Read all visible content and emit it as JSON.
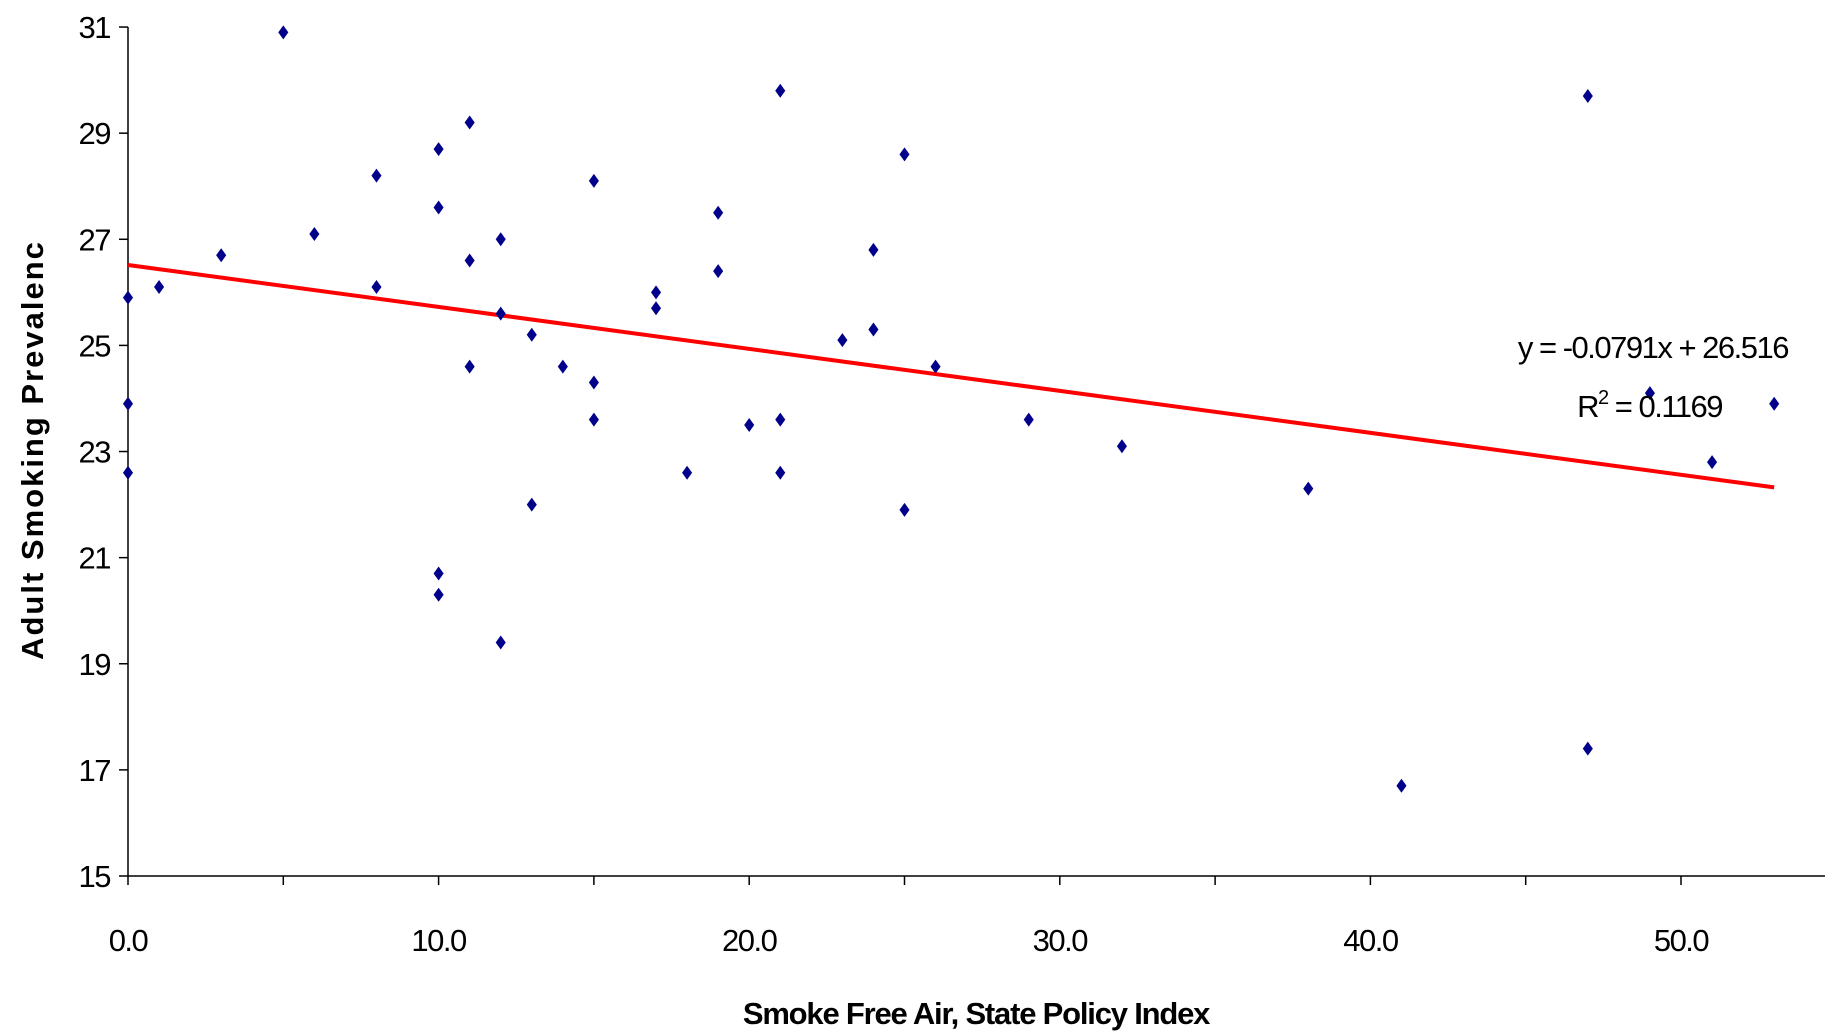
{
  "chart_data": {
    "type": "scatter",
    "title": "",
    "xlabel": "Smoke Free Air, State Policy Index",
    "ylabel": "Adult Smoking Prevalenc",
    "xlim": [
      0,
      54
    ],
    "ylim": [
      15,
      31
    ],
    "x_ticks": [
      "0.0",
      "10.0",
      "20.0",
      "30.0",
      "40.0",
      "50.0"
    ],
    "y_ticks": [
      "15",
      "17",
      "19",
      "21",
      "23",
      "25",
      "27",
      "29",
      "31"
    ],
    "grid": false,
    "legend": "none",
    "marker": "diamond",
    "marker_color": "#00008b",
    "trendline": {
      "color": "#ff0000",
      "slope": -0.0791,
      "intercept": 26.516,
      "x_range": [
        0,
        53
      ],
      "equation_label": "y = -0.0791x + 26.516",
      "r2_prefix": "R",
      "r2_sup": "2",
      "r2_suffix": " = 0.1169"
    },
    "points": [
      {
        "x": 0,
        "y": 25.9
      },
      {
        "x": 0,
        "y": 23.9
      },
      {
        "x": 0,
        "y": 22.6
      },
      {
        "x": 1,
        "y": 26.1
      },
      {
        "x": 3,
        "y": 26.7
      },
      {
        "x": 5,
        "y": 30.9
      },
      {
        "x": 6,
        "y": 27.1
      },
      {
        "x": 8,
        "y": 28.2
      },
      {
        "x": 8,
        "y": 26.1
      },
      {
        "x": 10,
        "y": 28.7
      },
      {
        "x": 10,
        "y": 27.6
      },
      {
        "x": 10,
        "y": 20.7
      },
      {
        "x": 10,
        "y": 20.3
      },
      {
        "x": 11,
        "y": 29.2
      },
      {
        "x": 11,
        "y": 26.6
      },
      {
        "x": 11,
        "y": 24.6
      },
      {
        "x": 12,
        "y": 27.0
      },
      {
        "x": 12,
        "y": 25.6
      },
      {
        "x": 12,
        "y": 19.4
      },
      {
        "x": 13,
        "y": 25.2
      },
      {
        "x": 13,
        "y": 22.0
      },
      {
        "x": 14,
        "y": 24.6
      },
      {
        "x": 15,
        "y": 28.1
      },
      {
        "x": 15,
        "y": 24.3
      },
      {
        "x": 15,
        "y": 23.6
      },
      {
        "x": 17,
        "y": 26.0
      },
      {
        "x": 17,
        "y": 25.7
      },
      {
        "x": 18,
        "y": 22.6
      },
      {
        "x": 19,
        "y": 27.5
      },
      {
        "x": 19,
        "y": 26.4
      },
      {
        "x": 20,
        "y": 23.5
      },
      {
        "x": 21,
        "y": 29.8
      },
      {
        "x": 21,
        "y": 23.6
      },
      {
        "x": 21,
        "y": 22.6
      },
      {
        "x": 23,
        "y": 25.1
      },
      {
        "x": 24,
        "y": 26.8
      },
      {
        "x": 24,
        "y": 25.3
      },
      {
        "x": 25,
        "y": 28.6
      },
      {
        "x": 25,
        "y": 21.9
      },
      {
        "x": 26,
        "y": 24.6
      },
      {
        "x": 29,
        "y": 23.6
      },
      {
        "x": 32,
        "y": 23.1
      },
      {
        "x": 38,
        "y": 22.3
      },
      {
        "x": 41,
        "y": 16.7
      },
      {
        "x": 47,
        "y": 29.7
      },
      {
        "x": 47,
        "y": 17.4
      },
      {
        "x": 49,
        "y": 24.1
      },
      {
        "x": 51,
        "y": 22.8
      },
      {
        "x": 53,
        "y": 23.9
      }
    ]
  }
}
